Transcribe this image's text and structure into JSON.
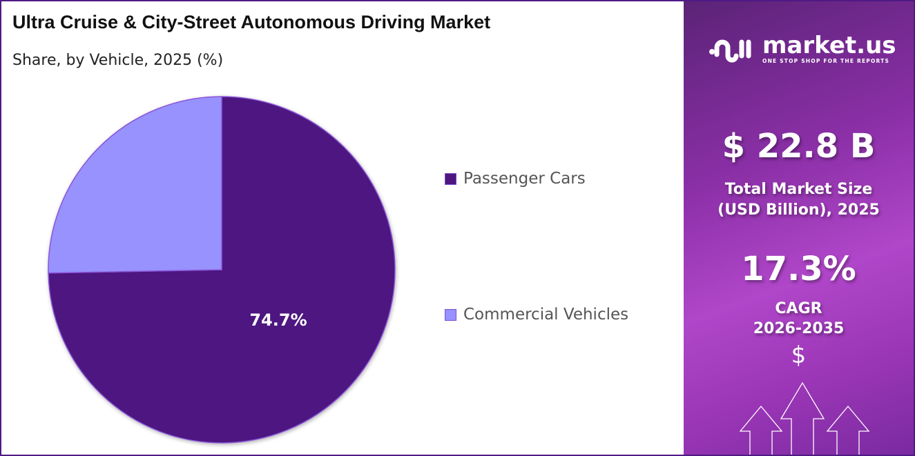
{
  "header": {
    "title": "Ultra Cruise & City-Street Autonomous Driving Market",
    "subtitle": "Share, by Vehicle, 2025 (%)"
  },
  "chart_data": {
    "type": "pie",
    "title": "Ultra Cruise & City-Street Autonomous Driving Market",
    "subtitle": "Share, by Vehicle, 2025 (%)",
    "categories": [
      "Passenger Cars",
      "Commercial Vehicles"
    ],
    "values": [
      74.7,
      25.3
    ],
    "colors": [
      "#4e1780",
      "#9792fd"
    ],
    "data_labels": [
      "74.7%",
      ""
    ],
    "legend_placement": "right",
    "start_angle": "top, clockwise"
  },
  "sidebar": {
    "logo_text": "market.us",
    "logo_tagline": "ONE STOP SHOP FOR THE REPORTS",
    "market_size": "$ 22.8 B",
    "market_size_label_1": "Total Market Size",
    "market_size_label_2": "(USD Billion), 2025",
    "cagr": "17.3%",
    "cagr_label": "CAGR",
    "cagr_period": "2026-2035",
    "dollar_symbol": "$"
  }
}
